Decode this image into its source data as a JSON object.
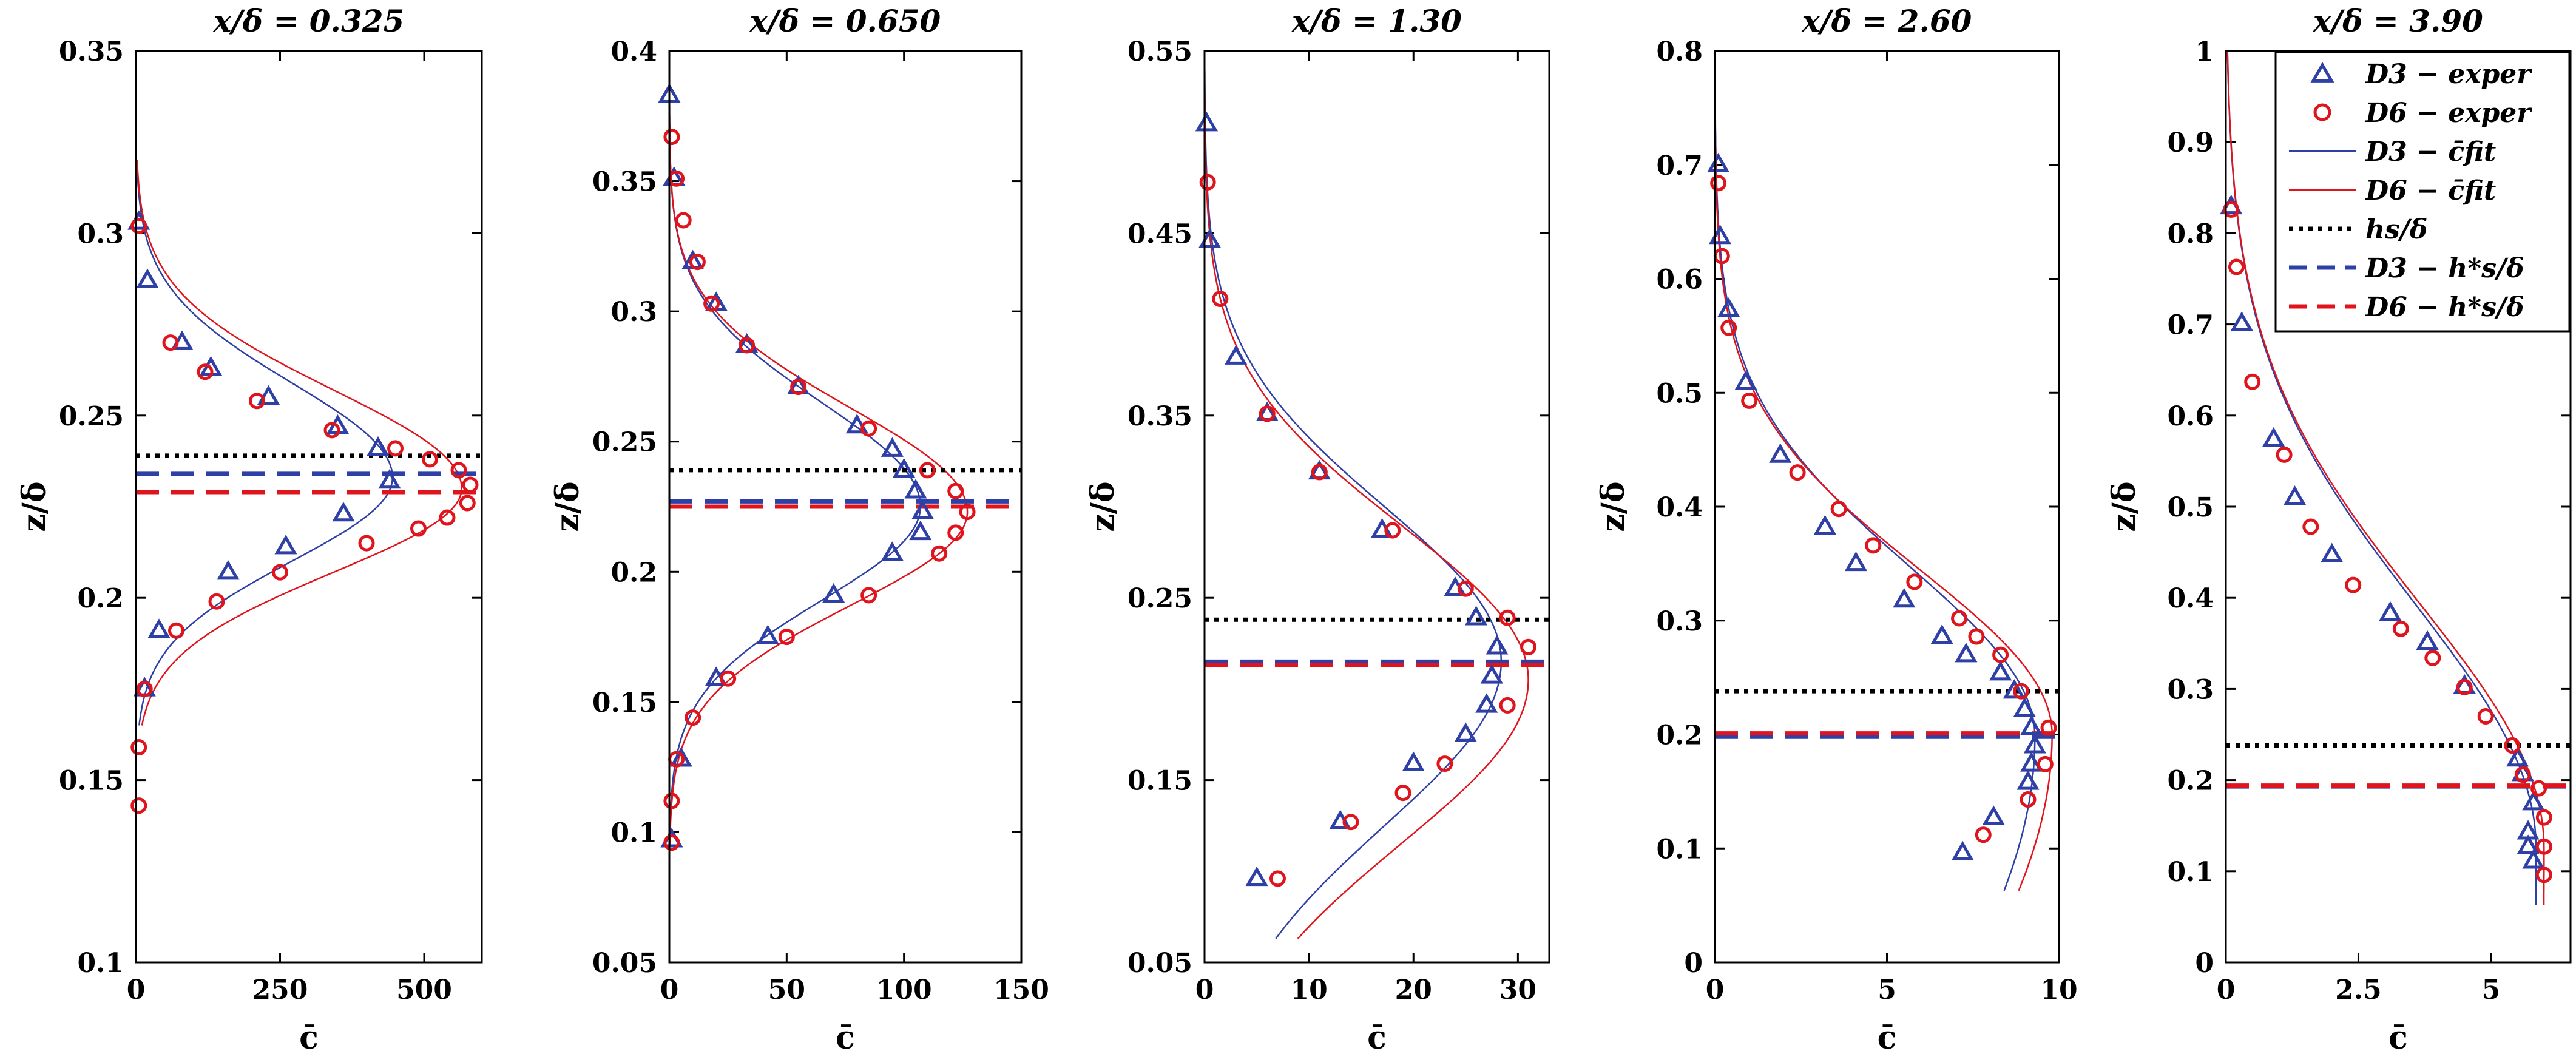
{
  "colors": {
    "d3": "#2e3fa6",
    "d6": "#e0141c",
    "hs": "#000000"
  },
  "legend": {
    "placement": "top-right of last panel",
    "items": [
      {
        "label": "D3 − exper",
        "kind": "marker-triangle",
        "color": "#2e3fa6"
      },
      {
        "label": "D6 − exper",
        "kind": "marker-circle",
        "color": "#e0141c"
      },
      {
        "label": "D3 − c̄fit",
        "kind": "line",
        "color": "#2e3fa6"
      },
      {
        "label": "D6 − c̄fit",
        "kind": "line",
        "color": "#e0141c"
      },
      {
        "label": "hs/δ",
        "kind": "dotted",
        "color": "#000000"
      },
      {
        "label": "D3 − h*s/δ",
        "kind": "dashed",
        "color": "#2e3fa6"
      },
      {
        "label": "D6 − h*s/δ",
        "kind": "dashed",
        "color": "#e0141c"
      }
    ]
  },
  "chart_data": [
    {
      "type": "scatter",
      "title": "x/δ = 0.325",
      "xlabel": "c̄",
      "ylabel": "z/δ",
      "xlim": [
        0,
        600
      ],
      "ylim": [
        0.1,
        0.35
      ],
      "xticks": [
        0,
        250,
        500
      ],
      "xticklabels": [
        "0",
        "250",
        "500"
      ],
      "yticks": [
        0.1,
        0.15,
        0.2,
        0.25,
        0.3,
        0.35
      ],
      "yticklabels": [
        "0.1",
        "0.15",
        "0.2",
        "0.25",
        "0.3",
        "0.35"
      ],
      "hs": 0.239,
      "hs_star_d3": 0.234,
      "hs_star_d6": 0.229,
      "d3_points": [
        [
          5,
          0.303
        ],
        [
          20,
          0.287
        ],
        [
          80,
          0.27
        ],
        [
          130,
          0.263
        ],
        [
          230,
          0.255
        ],
        [
          350,
          0.247
        ],
        [
          420,
          0.241
        ],
        [
          440,
          0.232
        ],
        [
          360,
          0.223
        ],
        [
          260,
          0.214
        ],
        [
          160,
          0.207
        ],
        [
          40,
          0.191
        ],
        [
          15,
          0.175
        ]
      ],
      "d6_points": [
        [
          5,
          0.302
        ],
        [
          60,
          0.27
        ],
        [
          120,
          0.262
        ],
        [
          210,
          0.254
        ],
        [
          340,
          0.246
        ],
        [
          450,
          0.241
        ],
        [
          510,
          0.238
        ],
        [
          560,
          0.235
        ],
        [
          580,
          0.231
        ],
        [
          575,
          0.226
        ],
        [
          540,
          0.222
        ],
        [
          490,
          0.219
        ],
        [
          400,
          0.215
        ],
        [
          250,
          0.207
        ],
        [
          140,
          0.199
        ],
        [
          70,
          0.191
        ],
        [
          15,
          0.175
        ],
        [
          5,
          0.159
        ],
        [
          5,
          0.143
        ]
      ],
      "d3_fit": {
        "c0": 0,
        "amp": 445,
        "mu": 0.233,
        "su": 0.026,
        "sl": 0.023,
        "zmin": 0.165,
        "zmax": 0.32
      },
      "d6_fit": {
        "c0": 0,
        "amp": 565,
        "mu": 0.23,
        "su": 0.027,
        "sl": 0.023,
        "zmin": 0.165,
        "zmax": 0.32
      }
    },
    {
      "type": "scatter",
      "title": "x/δ = 0.650",
      "xlabel": "c̄",
      "ylabel": "z/δ",
      "xlim": [
        0,
        150
      ],
      "ylim": [
        0.05,
        0.4
      ],
      "xticks": [
        0,
        50,
        100,
        150
      ],
      "xticklabels": [
        "0",
        "50",
        "100",
        "150"
      ],
      "yticks": [
        0.05,
        0.1,
        0.15,
        0.2,
        0.25,
        0.3,
        0.35,
        0.4
      ],
      "yticklabels": [
        "0.05",
        "0.1",
        "0.15",
        "0.2",
        "0.25",
        "0.3",
        "0.35",
        "0.4"
      ],
      "hs": 0.239,
      "hs_star_d3": 0.227,
      "hs_star_d6": 0.225,
      "d3_points": [
        [
          0,
          0.383
        ],
        [
          2,
          0.351
        ],
        [
          10,
          0.319
        ],
        [
          20,
          0.303
        ],
        [
          33,
          0.287
        ],
        [
          55,
          0.271
        ],
        [
          80,
          0.256
        ],
        [
          95,
          0.247
        ],
        [
          100,
          0.239
        ],
        [
          105,
          0.231
        ],
        [
          108,
          0.223
        ],
        [
          107,
          0.215
        ],
        [
          95,
          0.207
        ],
        [
          70,
          0.191
        ],
        [
          42,
          0.175
        ],
        [
          20,
          0.159
        ],
        [
          5,
          0.128
        ],
        [
          1,
          0.097
        ]
      ],
      "d6_points": [
        [
          1,
          0.367
        ],
        [
          3,
          0.351
        ],
        [
          6,
          0.335
        ],
        [
          12,
          0.319
        ],
        [
          18,
          0.303
        ],
        [
          33,
          0.287
        ],
        [
          55,
          0.271
        ],
        [
          85,
          0.255
        ],
        [
          110,
          0.239
        ],
        [
          122,
          0.231
        ],
        [
          127,
          0.223
        ],
        [
          122,
          0.215
        ],
        [
          115,
          0.207
        ],
        [
          85,
          0.191
        ],
        [
          50,
          0.175
        ],
        [
          25,
          0.159
        ],
        [
          10,
          0.144
        ],
        [
          3,
          0.128
        ],
        [
          1,
          0.112
        ],
        [
          1,
          0.096
        ]
      ],
      "d3_fit": {
        "c0": 0,
        "amp": 107,
        "mu": 0.225,
        "su": 0.04,
        "sl": 0.036,
        "zmin": 0.095,
        "zmax": 0.385
      },
      "d6_fit": {
        "c0": 0,
        "amp": 127,
        "mu": 0.223,
        "su": 0.04,
        "sl": 0.036,
        "zmin": 0.095,
        "zmax": 0.385
      }
    },
    {
      "type": "scatter",
      "title": "x/δ = 1.30",
      "xlabel": "c̄",
      "ylabel": "z/δ",
      "xlim": [
        0,
        33
      ],
      "ylim": [
        0.05,
        0.55
      ],
      "xticks": [
        0,
        10,
        20,
        30
      ],
      "xticklabels": [
        "0",
        "10",
        "20",
        "30"
      ],
      "yticks": [
        0.05,
        0.15,
        0.25,
        0.35,
        0.45,
        0.55
      ],
      "yticklabels": [
        "0.05",
        "0.15",
        "0.25",
        "0.35",
        "0.45",
        "0.55"
      ],
      "hs": 0.238,
      "hs_star_d3": 0.215,
      "hs_star_d6": 0.213,
      "d3_points": [
        [
          0.2,
          0.51
        ],
        [
          0.5,
          0.446
        ],
        [
          3,
          0.382
        ],
        [
          6,
          0.351
        ],
        [
          11,
          0.319
        ],
        [
          17,
          0.287
        ],
        [
          24,
          0.255
        ],
        [
          26,
          0.239
        ],
        [
          28,
          0.223
        ],
        [
          27.5,
          0.207
        ],
        [
          27,
          0.191
        ],
        [
          25,
          0.175
        ],
        [
          20,
          0.159
        ],
        [
          13,
          0.127
        ],
        [
          5,
          0.096
        ]
      ],
      "d6_points": [
        [
          0.3,
          0.478
        ],
        [
          1.5,
          0.414
        ],
        [
          6,
          0.351
        ],
        [
          11,
          0.319
        ],
        [
          18,
          0.287
        ],
        [
          25,
          0.255
        ],
        [
          29,
          0.239
        ],
        [
          31,
          0.223
        ],
        [
          29,
          0.191
        ],
        [
          23,
          0.159
        ],
        [
          19,
          0.143
        ],
        [
          14,
          0.127
        ],
        [
          7,
          0.096
        ]
      ],
      "d3_fit": {
        "c0": 0,
        "amp": 28.4,
        "mu": 0.215,
        "su": 0.085,
        "sl": 0.09,
        "zmin": 0.063,
        "zmax": 0.54
      },
      "d6_fit": {
        "c0": 0,
        "amp": 31,
        "mu": 0.205,
        "su": 0.085,
        "sl": 0.09,
        "zmin": 0.063,
        "zmax": 0.54
      }
    },
    {
      "type": "scatter",
      "title": "x/δ = 2.60",
      "xlabel": "c̄",
      "ylabel": "z/δ",
      "xlim": [
        0,
        10
      ],
      "ylim": [
        0,
        0.8
      ],
      "xticks": [
        0,
        5,
        10
      ],
      "xticklabels": [
        "0",
        "5",
        "10"
      ],
      "yticks": [
        0,
        0.1,
        0.2,
        0.3,
        0.4,
        0.5,
        0.6,
        0.7,
        0.8
      ],
      "yticklabels": [
        "0",
        "0.1",
        "0.2",
        "0.3",
        "0.4",
        "0.5",
        "0.6",
        "0.7",
        "0.8"
      ],
      "hs": 0.238,
      "hs_star_d3": 0.198,
      "hs_star_d6": 0.201,
      "d3_points": [
        [
          0.1,
          0.7
        ],
        [
          0.15,
          0.637
        ],
        [
          0.4,
          0.573
        ],
        [
          0.9,
          0.509
        ],
        [
          1.9,
          0.445
        ],
        [
          3.2,
          0.382
        ],
        [
          4.1,
          0.35
        ],
        [
          5.5,
          0.318
        ],
        [
          6.6,
          0.286
        ],
        [
          7.3,
          0.27
        ],
        [
          8.3,
          0.254
        ],
        [
          8.7,
          0.238
        ],
        [
          9,
          0.222
        ],
        [
          9.2,
          0.206
        ],
        [
          9.3,
          0.19
        ],
        [
          9.2,
          0.174
        ],
        [
          9.1,
          0.158
        ],
        [
          8.1,
          0.127
        ],
        [
          7.2,
          0.096
        ]
      ],
      "d6_points": [
        [
          0.1,
          0.684
        ],
        [
          0.2,
          0.62
        ],
        [
          0.4,
          0.557
        ],
        [
          1,
          0.493
        ],
        [
          2.4,
          0.43
        ],
        [
          3.6,
          0.398
        ],
        [
          4.6,
          0.366
        ],
        [
          5.8,
          0.334
        ],
        [
          7.1,
          0.302
        ],
        [
          7.6,
          0.286
        ],
        [
          8.3,
          0.27
        ],
        [
          8.9,
          0.238
        ],
        [
          9.7,
          0.206
        ],
        [
          9.6,
          0.174
        ],
        [
          9.1,
          0.143
        ],
        [
          7.8,
          0.112
        ]
      ],
      "d3_fit": {
        "c0": 0,
        "amp": 9.3,
        "mu": 0.198,
        "su": 0.15,
        "sl": 0.3,
        "zmin": 0.063,
        "zmax": 0.8
      },
      "d6_fit": {
        "c0": 0,
        "amp": 9.8,
        "mu": 0.2,
        "su": 0.145,
        "sl": 0.3,
        "zmin": 0.063,
        "zmax": 0.8
      }
    },
    {
      "type": "scatter",
      "title": "x/δ = 3.90",
      "xlabel": "c̄",
      "ylabel": "z/δ",
      "xlim": [
        0,
        6.5
      ],
      "ylim": [
        0,
        1
      ],
      "xticks": [
        0,
        2.5,
        5
      ],
      "xticklabels": [
        "0",
        "2.5",
        "5"
      ],
      "yticks": [
        0,
        0.1,
        0.2,
        0.3,
        0.4,
        0.5,
        0.6,
        0.7,
        0.8,
        0.9,
        1
      ],
      "yticklabels": [
        "0",
        "0.1",
        "0.2",
        "0.3",
        "0.4",
        "0.5",
        "0.6",
        "0.7",
        "0.8",
        "0.9",
        "1"
      ],
      "hs": 0.238,
      "hs_star_d3": 0.193,
      "hs_star_d6": 0.194,
      "d3_points": [
        [
          0.1,
          0.829
        ],
        [
          0.3,
          0.701
        ],
        [
          0.9,
          0.574
        ],
        [
          1.3,
          0.51
        ],
        [
          2,
          0.447
        ],
        [
          3.1,
          0.383
        ],
        [
          3.8,
          0.351
        ],
        [
          4.5,
          0.303
        ],
        [
          5.5,
          0.223
        ],
        [
          5.6,
          0.207
        ],
        [
          5.8,
          0.175
        ],
        [
          5.7,
          0.143
        ],
        [
          5.7,
          0.127
        ],
        [
          5.8,
          0.111
        ]
      ],
      "d6_points": [
        [
          0.1,
          0.826
        ],
        [
          0.2,
          0.763
        ],
        [
          0.5,
          0.637
        ],
        [
          1.1,
          0.557
        ],
        [
          1.6,
          0.478
        ],
        [
          2.4,
          0.414
        ],
        [
          3.3,
          0.366
        ],
        [
          3.9,
          0.334
        ],
        [
          4.5,
          0.302
        ],
        [
          4.9,
          0.27
        ],
        [
          5.4,
          0.238
        ],
        [
          5.6,
          0.206
        ],
        [
          5.9,
          0.191
        ],
        [
          6,
          0.159
        ],
        [
          6,
          0.127
        ],
        [
          6,
          0.096
        ]
      ],
      "d3_fit": {
        "c0": 0,
        "amp": 5.85,
        "mu": 0.125,
        "su": 0.27,
        "sl": 2.0,
        "zmin": 0.063,
        "zmax": 1
      },
      "d6_fit": {
        "c0": 0,
        "amp": 6.0,
        "mu": 0.125,
        "su": 0.27,
        "sl": 2.0,
        "zmin": 0.063,
        "zmax": 1
      }
    }
  ]
}
